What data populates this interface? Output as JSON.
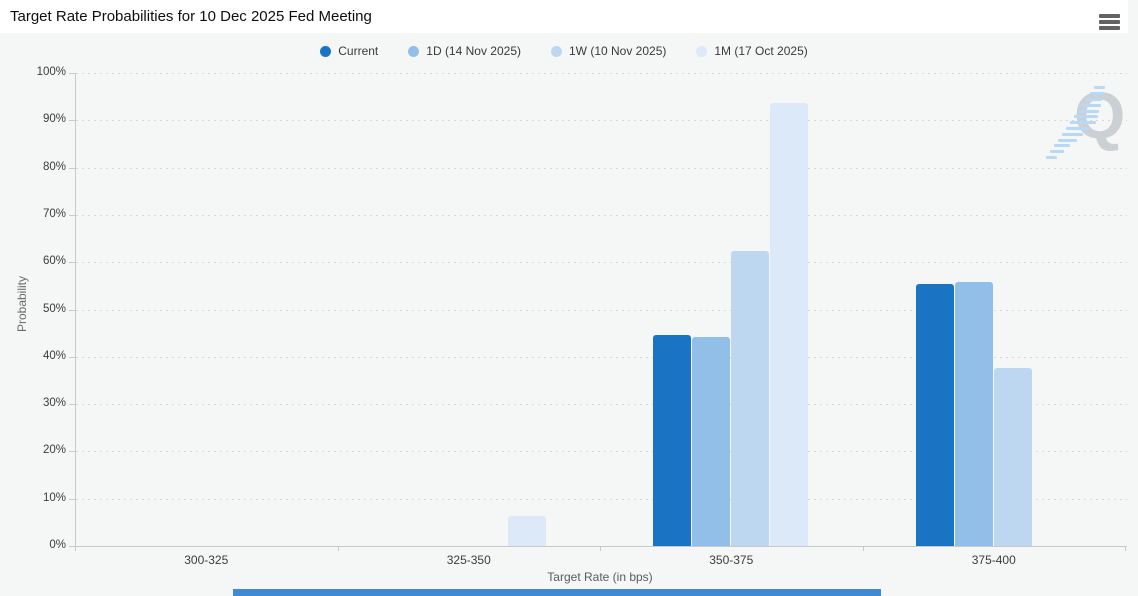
{
  "header": {
    "title": "Target Rate Probabilities for 10 Dec 2025 Fed Meeting"
  },
  "icons": {
    "menu": "hamburger-menu-icon",
    "legend_marker": "legend-dot-icon",
    "watermark": "q-logo-watermark"
  },
  "watermark": {
    "letter": "Q"
  },
  "footer_bar": {
    "color": "#4089d5"
  },
  "chart_data": {
    "type": "bar",
    "title": "Target Rate Probabilities for 10 Dec 2025 Fed Meeting",
    "categories": [
      "300-325",
      "325-350",
      "350-375",
      "375-400"
    ],
    "series": [
      {
        "name": "Current",
        "color": "#1b73c3",
        "values": [
          0,
          0,
          44.6,
          55.4
        ]
      },
      {
        "name": "1D (14 Nov 2025)",
        "color": "#92bfe8",
        "values": [
          0,
          0,
          44.2,
          55.8
        ]
      },
      {
        "name": "1W (10 Nov 2025)",
        "color": "#bdd7f1",
        "values": [
          0,
          0,
          62.3,
          37.7
        ]
      },
      {
        "name": "1M (17 Oct 2025)",
        "color": "#dbe9f8",
        "values": [
          0,
          6.3,
          93.7,
          0
        ]
      }
    ],
    "xlabel": "Target Rate (in bps)",
    "ylabel": "Probability",
    "ylim": [
      0,
      100
    ],
    "ytick_step": 10,
    "ytick_suffix": "%",
    "legend_position": "top",
    "grid": "dotted-horizontal"
  }
}
